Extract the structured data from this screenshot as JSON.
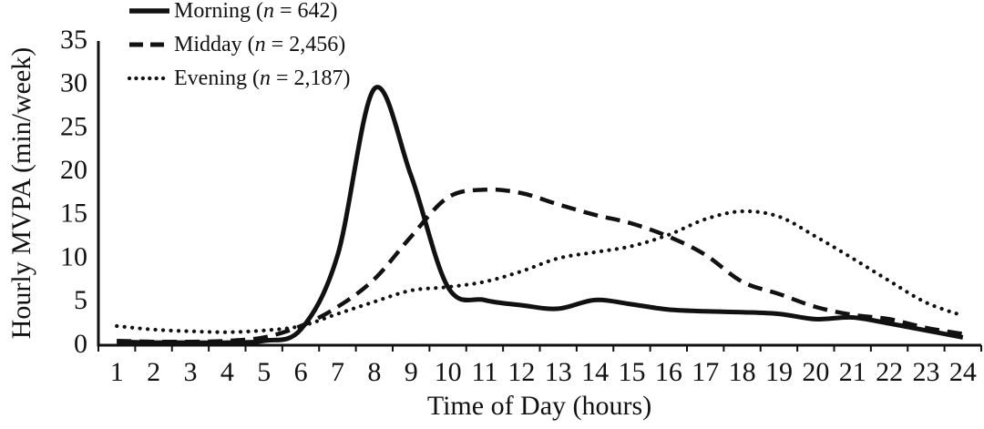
{
  "figure": {
    "background": "#ffffff",
    "ink_color": "#111111"
  },
  "chart_data": {
    "type": "line",
    "title": "",
    "xlabel": "Time of Day (hours)",
    "ylabel": "Hourly MVPA (min/week)",
    "x": [
      1,
      2,
      3,
      4,
      5,
      6,
      7,
      8,
      9,
      10,
      11,
      12,
      13,
      14,
      15,
      16,
      17,
      18,
      19,
      20,
      21,
      22,
      23,
      24
    ],
    "ylim": [
      0,
      35
    ],
    "y_ticks": [
      0,
      5,
      10,
      15,
      20,
      25,
      30,
      35
    ],
    "grid": false,
    "legend_position": "top-left",
    "legend_n_symbol": "n",
    "series": [
      {
        "name": "Morning",
        "n": "642",
        "line_style": "solid",
        "values": [
          0.4,
          0.3,
          0.3,
          0.3,
          0.5,
          1.8,
          10.3,
          29.5,
          19.5,
          6.7,
          5.2,
          4.6,
          4.2,
          5.2,
          4.7,
          4.1,
          3.9,
          3.8,
          3.6,
          3.0,
          3.2,
          2.5,
          1.7,
          0.9
        ]
      },
      {
        "name": "Midday",
        "n": "2,456",
        "line_style": "dashed",
        "values": [
          0.5,
          0.4,
          0.4,
          0.5,
          0.9,
          2.2,
          4.4,
          7.6,
          12.5,
          17.0,
          17.9,
          17.5,
          16.2,
          15.0,
          14.0,
          12.5,
          10.4,
          7.3,
          5.9,
          4.4,
          3.5,
          3.0,
          2.0,
          1.3
        ]
      },
      {
        "name": "Evening",
        "n": "2,187",
        "line_style": "dotted",
        "values": [
          2.2,
          1.8,
          1.6,
          1.5,
          1.7,
          2.2,
          3.6,
          5.0,
          6.3,
          6.7,
          7.3,
          8.5,
          10.0,
          10.7,
          11.4,
          12.7,
          14.5,
          15.4,
          14.8,
          12.5,
          10.0,
          7.4,
          4.9,
          3.4
        ]
      }
    ]
  }
}
